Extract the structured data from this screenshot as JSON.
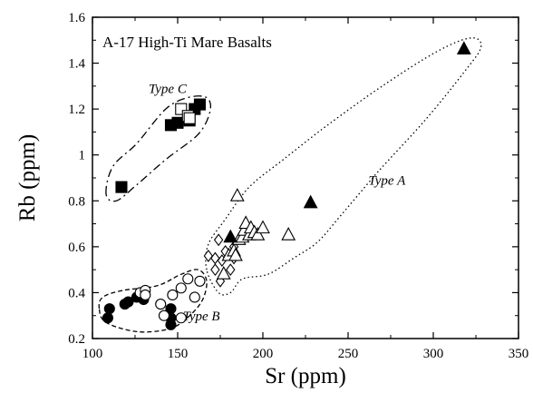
{
  "chart_data": {
    "type": "scatter",
    "title": "A-17 High-Ti Mare Basalts",
    "xlabel": "Sr (ppm)",
    "ylabel": "Rb (ppm)",
    "xlim": [
      100,
      350
    ],
    "ylim": [
      0.2,
      1.6
    ],
    "x_ticks": [
      100,
      150,
      200,
      250,
      300,
      350
    ],
    "y_ticks": [
      0.2,
      0.4,
      0.6,
      0.8,
      1,
      1.2,
      1.4,
      1.6
    ],
    "x_tick_labels": [
      "100",
      "150",
      "200",
      "250",
      "300",
      "350"
    ],
    "y_tick_labels": [
      "0.2",
      "0.4",
      "0.6",
      "0.8",
      "1",
      "1.2",
      "1.4",
      "1.6"
    ],
    "grid": false,
    "series": [
      {
        "marker": "filled-square",
        "points": [
          [
            117,
            0.86
          ],
          [
            146,
            1.13
          ],
          [
            150,
            1.14
          ],
          [
            157,
            1.15
          ],
          [
            160,
            1.2
          ],
          [
            163,
            1.22
          ]
        ]
      },
      {
        "marker": "open-square",
        "points": [
          [
            152,
            1.2
          ],
          [
            156,
            1.17
          ],
          [
            157,
            1.16
          ]
        ]
      },
      {
        "marker": "filled-circle",
        "points": [
          [
            109,
            0.29
          ],
          [
            110,
            0.33
          ],
          [
            119,
            0.35
          ],
          [
            121,
            0.36
          ],
          [
            126,
            0.38
          ],
          [
            129,
            0.39
          ],
          [
            130,
            0.37
          ],
          [
            146,
            0.29
          ],
          [
            146,
            0.33
          ],
          [
            146,
            0.26
          ]
        ]
      },
      {
        "marker": "open-circle",
        "points": [
          [
            128,
            0.4
          ],
          [
            131,
            0.41
          ],
          [
            131,
            0.39
          ],
          [
            140,
            0.35
          ],
          [
            142,
            0.3
          ],
          [
            147,
            0.39
          ],
          [
            152,
            0.42
          ],
          [
            152,
            0.29
          ],
          [
            156,
            0.46
          ],
          [
            160,
            0.38
          ],
          [
            163,
            0.45
          ]
        ]
      },
      {
        "marker": "open-diamond",
        "points": [
          [
            168,
            0.56
          ],
          [
            172,
            0.55
          ],
          [
            172,
            0.5
          ],
          [
            174,
            0.63
          ],
          [
            175,
            0.45
          ],
          [
            176,
            0.54
          ],
          [
            178,
            0.58
          ],
          [
            181,
            0.5
          ],
          [
            183,
            0.6
          ],
          [
            183,
            0.55
          ]
        ]
      },
      {
        "marker": "open-triangle",
        "points": [
          [
            177,
            0.48
          ],
          [
            180,
            0.56
          ],
          [
            183,
            0.58
          ],
          [
            184,
            0.56
          ],
          [
            185,
            0.82
          ],
          [
            186,
            0.63
          ],
          [
            188,
            0.64
          ],
          [
            189,
            0.67
          ],
          [
            190,
            0.7
          ],
          [
            192,
            0.65
          ],
          [
            193,
            0.68
          ],
          [
            195,
            0.66
          ],
          [
            197,
            0.65
          ],
          [
            200,
            0.68
          ],
          [
            215,
            0.65
          ]
        ]
      },
      {
        "marker": "filled-triangle",
        "points": [
          [
            181,
            0.64
          ],
          [
            228,
            0.79
          ],
          [
            318,
            1.46
          ]
        ]
      }
    ],
    "group_labels": [
      {
        "text": "Type C",
        "x": 133,
        "y": 1.27
      },
      {
        "text": "Type A",
        "x": 262,
        "y": 0.87
      },
      {
        "text": "Type B",
        "x": 153,
        "y": 0.28
      }
    ],
    "group_outlines": [
      {
        "group": "Type C",
        "dash": "dash-dot",
        "points": [
          [
            108,
            0.83
          ],
          [
            112,
            0.95
          ],
          [
            126,
            1.05
          ],
          [
            143,
            1.2
          ],
          [
            156,
            1.25
          ],
          [
            167,
            1.25
          ],
          [
            169,
            1.19
          ],
          [
            162,
            1.09
          ],
          [
            143,
            0.98
          ],
          [
            126,
            0.87
          ],
          [
            114,
            0.8
          ]
        ]
      },
      {
        "group": "Type A",
        "dash": "dotted",
        "points": [
          [
            167,
            0.5
          ],
          [
            168,
            0.61
          ],
          [
            178,
            0.72
          ],
          [
            192,
            0.86
          ],
          [
            212,
            0.98
          ],
          [
            238,
            1.13
          ],
          [
            270,
            1.3
          ],
          [
            302,
            1.45
          ],
          [
            322,
            1.51
          ],
          [
            328,
            1.47
          ],
          [
            318,
            1.36
          ],
          [
            295,
            1.15
          ],
          [
            268,
            0.93
          ],
          [
            245,
            0.73
          ],
          [
            232,
            0.62
          ],
          [
            218,
            0.55
          ],
          [
            203,
            0.48
          ],
          [
            188,
            0.46
          ],
          [
            181,
            0.4
          ],
          [
            174,
            0.4
          ]
        ]
      },
      {
        "group": "Type B",
        "dash": "dashed",
        "points": [
          [
            104,
            0.33
          ],
          [
            106,
            0.38
          ],
          [
            118,
            0.41
          ],
          [
            138,
            0.43
          ],
          [
            152,
            0.48
          ],
          [
            162,
            0.5
          ],
          [
            167,
            0.45
          ],
          [
            164,
            0.36
          ],
          [
            154,
            0.28
          ],
          [
            144,
            0.24
          ],
          [
            126,
            0.23
          ],
          [
            108,
            0.27
          ]
        ]
      }
    ]
  }
}
